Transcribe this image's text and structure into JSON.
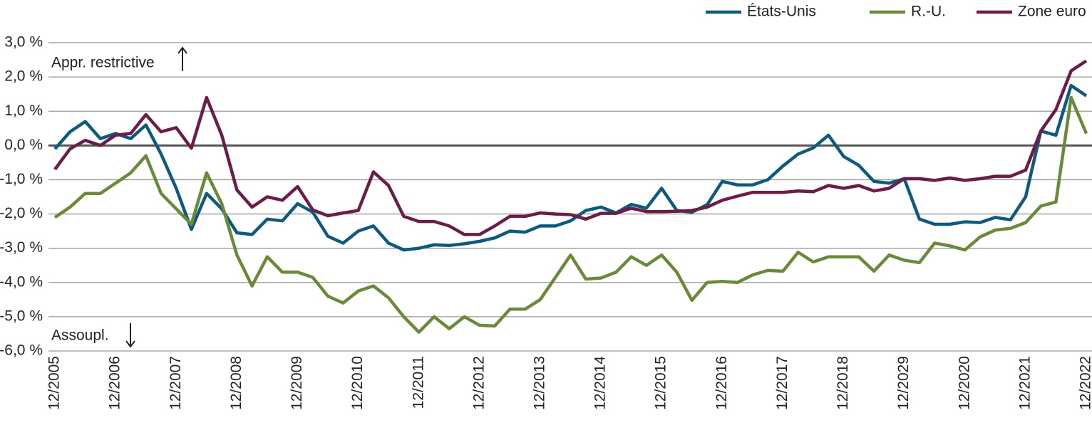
{
  "chart_data": {
    "type": "line",
    "annotations": [
      "Appr. restrictive",
      "Assoupl."
    ],
    "categories": [
      "12/2005",
      null,
      null,
      null,
      "12/2006",
      null,
      null,
      null,
      "12/2007",
      null,
      null,
      null,
      "12/2008",
      null,
      null,
      null,
      "12/2009",
      null,
      null,
      null,
      "12/2010",
      null,
      null,
      null,
      "12/2011",
      null,
      null,
      null,
      "12/2012",
      null,
      null,
      null,
      "12/2013",
      null,
      null,
      null,
      "12/2014",
      null,
      null,
      null,
      "12/2015",
      null,
      null,
      null,
      "12/2016",
      null,
      null,
      null,
      "12/2017",
      null,
      null,
      null,
      "12/2018",
      null,
      null,
      null,
      "12/2029",
      null,
      null,
      null,
      "12/2020",
      null,
      null,
      null,
      "12/2021",
      null,
      null,
      null,
      "12/2022"
    ],
    "series": [
      {
        "name": "États-Unis",
        "color": "#0e5a7e",
        "values": [
          -0.1,
          0.4,
          0.7,
          0.2,
          0.35,
          0.2,
          0.6,
          -0.25,
          -1.25,
          -2.45,
          -1.4,
          -1.85,
          -2.55,
          -2.6,
          -2.15,
          -2.2,
          -1.7,
          -1.95,
          -2.65,
          -2.85,
          -2.5,
          -2.35,
          -2.85,
          -3.05,
          -3.0,
          -2.9,
          -2.92,
          -2.87,
          -2.8,
          -2.7,
          -2.5,
          -2.53,
          -2.35,
          -2.35,
          -2.2,
          -1.9,
          -1.8,
          -1.97,
          -1.72,
          -1.83,
          -1.25,
          -1.9,
          -1.95,
          -1.73,
          -1.05,
          -1.15,
          -1.15,
          -1.0,
          -0.6,
          -0.25,
          -0.07,
          0.3,
          -0.32,
          -0.58,
          -1.05,
          -1.1,
          -0.97,
          -2.15,
          -2.3,
          -2.3,
          -2.23,
          -2.25,
          -2.1,
          -2.17,
          -1.5,
          0.42,
          0.3,
          1.75,
          1.45
        ]
      },
      {
        "name": "R.-U.",
        "color": "#6a8a3a",
        "values": [
          -2.1,
          -1.8,
          -1.4,
          -1.4,
          -1.1,
          -0.8,
          -0.3,
          -1.4,
          -1.85,
          -2.3,
          -0.8,
          -1.7,
          -3.2,
          -4.1,
          -3.25,
          -3.7,
          -3.7,
          -3.85,
          -4.4,
          -4.6,
          -4.25,
          -4.1,
          -4.45,
          -5.0,
          -5.45,
          -5.0,
          -5.35,
          -5.0,
          -5.25,
          -5.27,
          -4.78,
          -4.78,
          -4.5,
          -3.85,
          -3.2,
          -3.9,
          -3.87,
          -3.7,
          -3.25,
          -3.5,
          -3.2,
          -3.7,
          -4.52,
          -4.0,
          -3.97,
          -4.0,
          -3.78,
          -3.65,
          -3.67,
          -3.12,
          -3.4,
          -3.25,
          -3.25,
          -3.25,
          -3.67,
          -3.2,
          -3.35,
          -3.42,
          -2.85,
          -2.93,
          -3.05,
          -2.67,
          -2.47,
          -2.42,
          -2.25,
          -1.77,
          -1.65,
          1.4,
          0.35
        ]
      },
      {
        "name": "Zone euro",
        "color": "#6b1c47",
        "values": [
          -0.7,
          -0.1,
          0.15,
          0.0,
          0.3,
          0.35,
          0.9,
          0.4,
          0.52,
          -0.08,
          1.4,
          0.3,
          -1.3,
          -1.8,
          -1.5,
          -1.6,
          -1.2,
          -1.88,
          -2.05,
          -1.97,
          -1.9,
          -0.77,
          -1.17,
          -2.07,
          -2.22,
          -2.22,
          -2.35,
          -2.6,
          -2.6,
          -2.35,
          -2.07,
          -2.07,
          -1.97,
          -2.0,
          -2.02,
          -2.15,
          -1.98,
          -1.98,
          -1.83,
          -1.93,
          -1.93,
          -1.92,
          -1.9,
          -1.8,
          -1.6,
          -1.48,
          -1.37,
          -1.37,
          -1.37,
          -1.33,
          -1.35,
          -1.17,
          -1.25,
          -1.17,
          -1.33,
          -1.25,
          -0.97,
          -0.97,
          -1.02,
          -0.95,
          -1.02,
          -0.97,
          -0.9,
          -0.9,
          -0.72,
          0.42,
          1.05,
          2.18,
          2.47
        ]
      }
    ],
    "ylim": [
      -6,
      3
    ],
    "yticks": [
      {
        "value": -6,
        "label": "-6,0 %"
      },
      {
        "value": -5,
        "label": "-5,0 %"
      },
      {
        "value": -4,
        "label": "-4,0 %"
      },
      {
        "value": -3,
        "label": "-3,0 %"
      },
      {
        "value": -2,
        "label": "-2,0 %"
      },
      {
        "value": -1,
        "label": "-1,0 %"
      },
      {
        "value": 0,
        "label": "0,0 %"
      },
      {
        "value": 1,
        "label": "1,0 %"
      },
      {
        "value": 2,
        "label": "2,0 %"
      },
      {
        "value": 3,
        "label": "3,0 %"
      }
    ],
    "grid": true,
    "legend": "top-right"
  }
}
